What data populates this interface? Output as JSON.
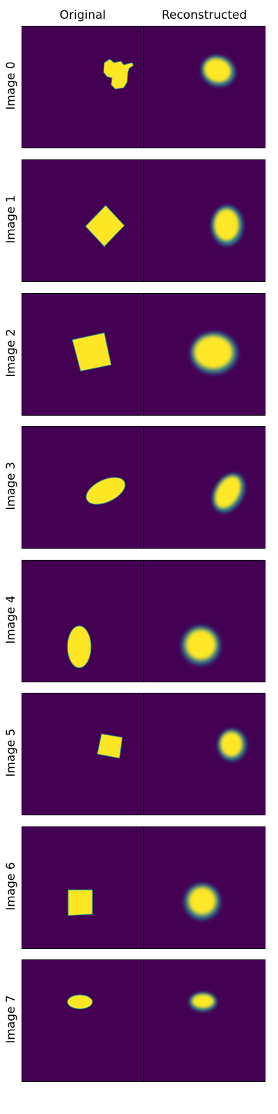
{
  "columns": {
    "original": "Original",
    "reconstructed": "Reconstructed"
  },
  "rows": [
    {
      "label": "Image 0"
    },
    {
      "label": "Image 1"
    },
    {
      "label": "Image 2"
    },
    {
      "label": "Image 3"
    },
    {
      "label": "Image 4"
    },
    {
      "label": "Image 5"
    },
    {
      "label": "Image 6"
    },
    {
      "label": "Image 7"
    }
  ],
  "colors": {
    "background": "#440154",
    "shape": "#fde725",
    "edge": "#21918c",
    "halo": "#2c728e"
  }
}
